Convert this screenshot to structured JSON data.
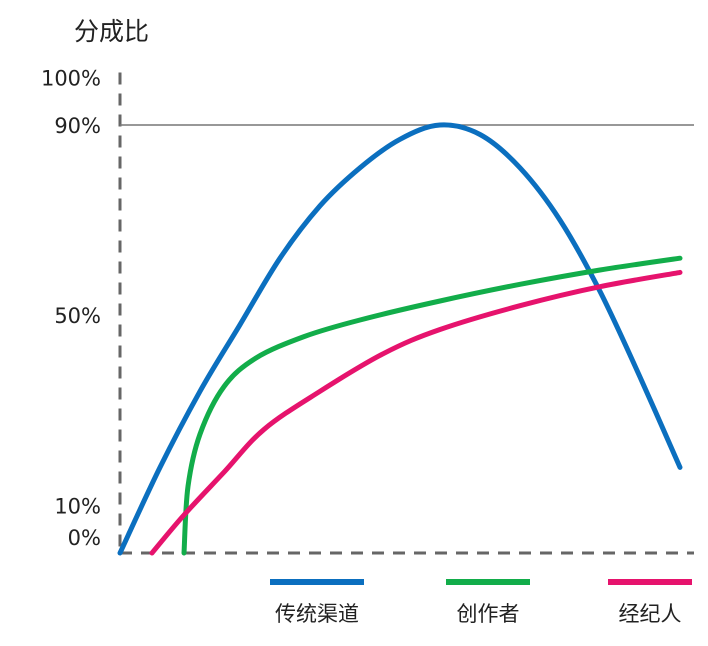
{
  "chart_data": {
    "type": "line",
    "ylabel": "分成比",
    "xlabel": "",
    "title": "",
    "ylim": [
      0,
      100
    ],
    "y_ticks": [
      {
        "value": 0,
        "label": "0%"
      },
      {
        "value": 10,
        "label": "10%"
      },
      {
        "value": 50,
        "label": "50%"
      },
      {
        "value": 90,
        "label": "90%"
      },
      {
        "value": 100,
        "label": "100%"
      }
    ],
    "reference_line": {
      "value": 90
    },
    "x_axis_style": "dashed",
    "y_axis_style": "dashed",
    "legend_position": "bottom",
    "series": [
      {
        "name": "传统渠道",
        "color": "#0b6fbf",
        "points": [
          [
            0,
            0
          ],
          [
            0.5,
            18
          ],
          [
            1,
            34
          ],
          [
            1.5,
            48
          ],
          [
            2,
            62
          ],
          [
            2.5,
            73
          ],
          [
            3,
            81
          ],
          [
            3.5,
            87
          ],
          [
            4,
            90
          ],
          [
            4.5,
            88
          ],
          [
            5,
            81
          ],
          [
            5.5,
            70
          ],
          [
            6,
            55
          ],
          [
            6.5,
            37
          ],
          [
            7,
            18
          ]
        ]
      },
      {
        "name": "创作者",
        "color": "#12ad4a",
        "points": [
          [
            0.8,
            0
          ],
          [
            0.85,
            14
          ],
          [
            1,
            25
          ],
          [
            1.3,
            35
          ],
          [
            1.7,
            41
          ],
          [
            2.3,
            45.5
          ],
          [
            3,
            49
          ],
          [
            4,
            53
          ],
          [
            5,
            56.5
          ],
          [
            6,
            59.5
          ],
          [
            7,
            62
          ]
        ]
      },
      {
        "name": "经纪人",
        "color": "#e6136d",
        "points": [
          [
            0.4,
            0
          ],
          [
            0.8,
            8
          ],
          [
            1.3,
            17
          ],
          [
            1.8,
            26
          ],
          [
            2.5,
            34
          ],
          [
            3.3,
            42
          ],
          [
            4,
            47
          ],
          [
            5,
            52
          ],
          [
            6,
            56
          ],
          [
            7,
            59
          ]
        ]
      }
    ]
  }
}
